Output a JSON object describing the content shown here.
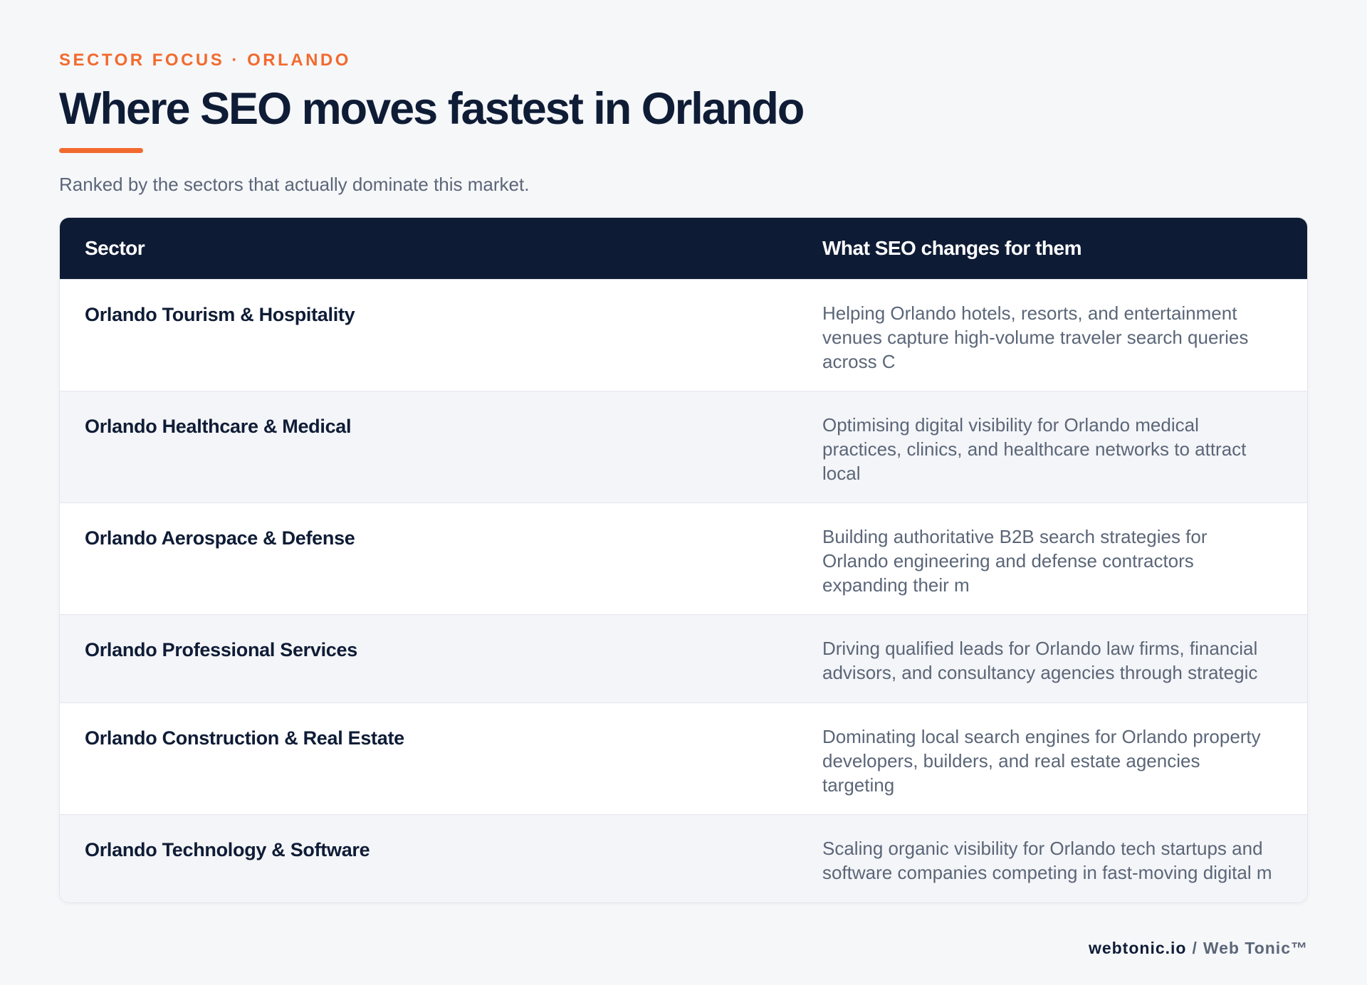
{
  "header": {
    "eyebrow": "SECTOR FOCUS · ORLANDO",
    "title": "Where SEO moves fastest in Orlando",
    "subtitle": "Ranked by the sectors that actually dominate this market."
  },
  "table": {
    "columns": [
      "Sector",
      "What SEO changes for them"
    ],
    "rows": [
      {
        "sector": "Orlando Tourism & Hospitality",
        "description": "Helping Orlando hotels, resorts, and entertainment venues capture high-volume traveler search queries across C"
      },
      {
        "sector": "Orlando Healthcare & Medical",
        "description": "Optimising digital visibility for Orlando medical practices, clinics, and healthcare networks to attract local"
      },
      {
        "sector": "Orlando Aerospace & Defense",
        "description": "Building authoritative B2B search strategies for Orlando engineering and defense contractors expanding their m"
      },
      {
        "sector": "Orlando Professional Services",
        "description": "Driving qualified leads for Orlando law firms, financial advisors, and consultancy agencies through strategic"
      },
      {
        "sector": "Orlando Construction & Real Estate",
        "description": "Dominating local search engines for Orlando property developers, builders, and real estate agencies targeting"
      },
      {
        "sector": "Orlando Technology & Software",
        "description": "Scaling organic visibility for Orlando tech startups and software companies competing in fast-moving digital m"
      }
    ]
  },
  "footer": {
    "domain": "webtonic.io",
    "separator": "/",
    "brand": "Web Tonic™"
  },
  "colors": {
    "accent": "#f26a2e",
    "navy": "#0e1b35",
    "muted_text": "#5b6678",
    "background": "#f6f7f9"
  }
}
